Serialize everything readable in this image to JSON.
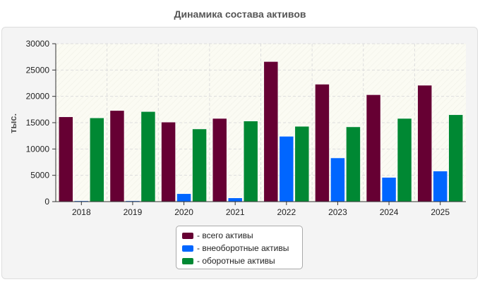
{
  "chart_data": {
    "type": "bar",
    "title": "Динамика состава активов",
    "ylabel": "тыс.",
    "xlabel": "",
    "categories": [
      "2018",
      "2019",
      "2020",
      "2021",
      "2022",
      "2023",
      "2024",
      "2025"
    ],
    "series": [
      {
        "name": "- всего активы",
        "color": "#660033",
        "values": [
          16100,
          17300,
          15100,
          15800,
          26600,
          22300,
          20300,
          22100
        ]
      },
      {
        "name": "- внеоборотные активы",
        "color": "#0066ff",
        "values": [
          150,
          150,
          1500,
          700,
          12400,
          8300,
          4600,
          5800
        ]
      },
      {
        "name": "- оборотные активы",
        "color": "#008833",
        "values": [
          15900,
          17100,
          13800,
          15300,
          14300,
          14200,
          15800,
          16500
        ]
      }
    ],
    "ylim": [
      0,
      30000
    ],
    "yticks": [
      "30000",
      "25000",
      "20000",
      "15000",
      "10000",
      "5000",
      "0"
    ],
    "ytick_values": [
      30000,
      25000,
      20000,
      15000,
      10000,
      5000,
      0
    ],
    "grid": true,
    "legend_position": "bottom-center"
  }
}
